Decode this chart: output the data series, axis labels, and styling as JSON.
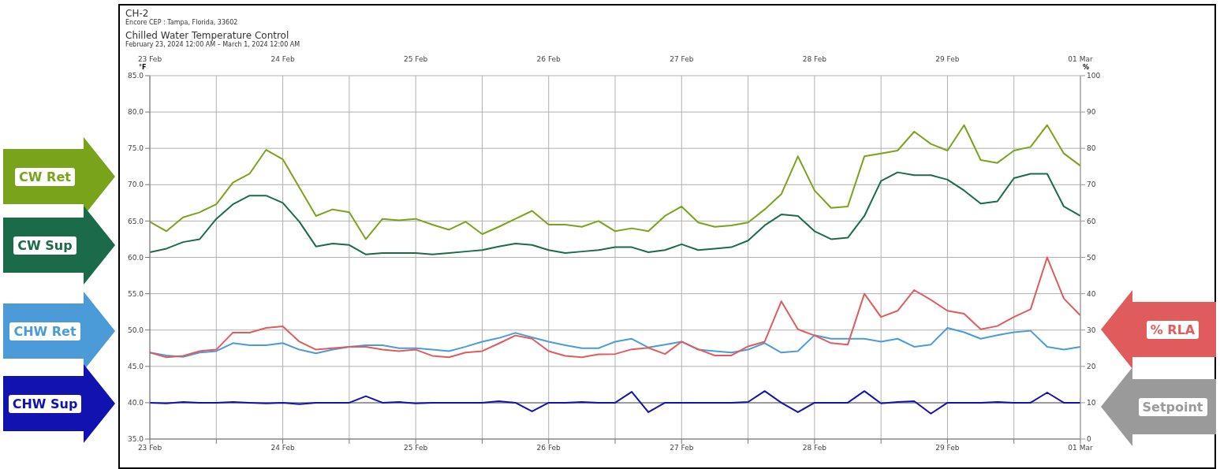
{
  "chart_data": {
    "type": "line",
    "title": "Chilled Water Temperature Control",
    "subtitle": "February 23, 2024 12:00 AM – March 1, 2024 12:00 AM",
    "annotations": [
      "CH-2",
      "Encore CEP : Tampa, Florida, 33602"
    ],
    "ylabel": "°F",
    "y2label": "%",
    "x": [
      "2024-02-23T00:00",
      "2024-02-23T03:00",
      "2024-02-23T06:00",
      "2024-02-23T09:00",
      "2024-02-23T12:00",
      "2024-02-23T15:00",
      "2024-02-23T18:00",
      "2024-02-23T21:00",
      "2024-02-24T00:00",
      "2024-02-24T03:00",
      "2024-02-24T06:00",
      "2024-02-24T09:00",
      "2024-02-24T12:00",
      "2024-02-24T15:00",
      "2024-02-24T18:00",
      "2024-02-24T21:00",
      "2024-02-25T00:00",
      "2024-02-25T03:00",
      "2024-02-25T06:00",
      "2024-02-25T09:00",
      "2024-02-25T12:00",
      "2024-02-25T15:00",
      "2024-02-25T18:00",
      "2024-02-25T21:00",
      "2024-02-26T00:00",
      "2024-02-26T03:00",
      "2024-02-26T06:00",
      "2024-02-26T09:00",
      "2024-02-26T12:00",
      "2024-02-26T15:00",
      "2024-02-26T18:00",
      "2024-02-26T21:00",
      "2024-02-27T00:00",
      "2024-02-27T03:00",
      "2024-02-27T06:00",
      "2024-02-27T09:00",
      "2024-02-27T12:00",
      "2024-02-27T15:00",
      "2024-02-27T18:00",
      "2024-02-27T21:00",
      "2024-02-28T00:00",
      "2024-02-28T03:00",
      "2024-02-28T06:00",
      "2024-02-28T09:00",
      "2024-02-28T12:00",
      "2024-02-28T15:00",
      "2024-02-28T18:00",
      "2024-02-28T21:00",
      "2024-02-29T00:00",
      "2024-02-29T03:00",
      "2024-02-29T06:00",
      "2024-02-29T09:00",
      "2024-02-29T12:00",
      "2024-02-29T15:00",
      "2024-02-29T18:00",
      "2024-02-29T21:00",
      "2024-03-01T00:00"
    ],
    "series": [
      {
        "name": "CW Ret",
        "color": "#7aa31c",
        "values": [
          64.9,
          63.6,
          65.5,
          66.2,
          67.3,
          70.3,
          71.5,
          74.8,
          73.5,
          69.6,
          65.7,
          66.6,
          66.2,
          62.5,
          65.3,
          65.1,
          65.3,
          64.5,
          63.8,
          64.9,
          63.2,
          64.2,
          65.3,
          66.4,
          64.5,
          64.5,
          64.2,
          65.0,
          63.6,
          64.0,
          63.6,
          65.7,
          67.0,
          64.8,
          64.2,
          64.4,
          64.8,
          66.6,
          68.7,
          73.9,
          69.2,
          66.8,
          67.0,
          73.9,
          74.3,
          74.7,
          77.3,
          75.6,
          74.7,
          78.2,
          73.4,
          73.0,
          74.7,
          75.2,
          78.2,
          74.3,
          72.6
        ]
      },
      {
        "name": "CW Sup",
        "color": "#1b6b4a",
        "values": [
          60.7,
          61.2,
          62.1,
          62.5,
          65.3,
          67.3,
          68.5,
          68.5,
          67.5,
          64.9,
          61.5,
          61.9,
          61.7,
          60.4,
          60.6,
          60.6,
          60.6,
          60.4,
          60.6,
          60.8,
          61.0,
          61.5,
          61.9,
          61.7,
          61.0,
          60.6,
          60.8,
          61.0,
          61.4,
          61.4,
          60.7,
          61.0,
          61.8,
          61.0,
          61.2,
          61.4,
          62.3,
          64.4,
          65.9,
          65.7,
          63.6,
          62.5,
          62.7,
          65.7,
          70.5,
          71.7,
          71.3,
          71.3,
          70.7,
          69.2,
          67.4,
          67.7,
          70.9,
          71.5,
          71.5,
          67.0,
          65.7
        ]
      },
      {
        "name": "CHW Ret",
        "color": "#4b9bd9",
        "values": [
          46.9,
          46.5,
          46.3,
          46.9,
          47.1,
          48.2,
          47.9,
          47.9,
          48.2,
          47.3,
          46.8,
          47.3,
          47.7,
          47.9,
          47.9,
          47.5,
          47.5,
          47.3,
          47.1,
          47.7,
          48.4,
          48.9,
          49.6,
          49.0,
          48.4,
          47.9,
          47.5,
          47.5,
          48.4,
          48.8,
          47.6,
          48.0,
          48.4,
          47.3,
          47.1,
          46.9,
          47.3,
          48.2,
          46.9,
          47.1,
          49.3,
          48.8,
          48.8,
          48.8,
          48.4,
          48.8,
          47.7,
          48.0,
          50.3,
          49.7,
          48.8,
          49.3,
          49.7,
          49.9,
          47.7,
          47.3,
          47.7
        ]
      },
      {
        "name": "% RLA",
        "color": "#e05c5c",
        "axis": "y2",
        "values": [
          23.8,
          22.5,
          22.9,
          24.2,
          24.6,
          29.3,
          29.3,
          30.6,
          31.0,
          26.8,
          24.6,
          25.0,
          25.4,
          25.4,
          24.6,
          24.2,
          24.6,
          22.9,
          22.5,
          23.8,
          24.2,
          26.3,
          28.5,
          27.6,
          24.2,
          22.9,
          22.5,
          23.3,
          23.4,
          24.7,
          25.1,
          23.4,
          26.8,
          24.7,
          23.0,
          23.0,
          25.5,
          26.8,
          37.9,
          30.2,
          28.5,
          26.4,
          26.0,
          40.0,
          33.6,
          35.3,
          41.0,
          38.3,
          35.3,
          34.5,
          30.2,
          31.1,
          33.6,
          35.7,
          50.0,
          38.7,
          34.0
        ]
      },
      {
        "name": "Setpoint",
        "color": "#9a9a9a",
        "x": [
          "2024-02-23T00:00",
          "2024-03-01T00:00"
        ],
        "values": [
          40.0,
          40.0
        ]
      },
      {
        "name": "CHW Sup",
        "color": "#1212b0",
        "values": [
          40.0,
          39.9,
          40.1,
          40.0,
          40.0,
          40.1,
          40.0,
          39.9,
          40.0,
          39.8,
          40.0,
          40.0,
          40.0,
          40.9,
          40.0,
          40.1,
          39.9,
          40.0,
          40.0,
          40.0,
          40.0,
          40.2,
          40.0,
          38.8,
          40.0,
          40.0,
          40.1,
          40.0,
          40.0,
          41.5,
          38.7,
          40.0,
          40.0,
          40.0,
          40.0,
          40.0,
          40.1,
          41.6,
          40.0,
          38.7,
          40.0,
          40.0,
          40.0,
          41.6,
          39.9,
          40.1,
          40.2,
          38.5,
          40.0,
          40.0,
          40.0,
          40.1,
          40.0,
          40.0,
          41.4,
          40.0,
          40.0
        ]
      }
    ],
    "xlim": [
      "2024-02-23T00:00",
      "2024-03-01T00:00"
    ],
    "xticks": [
      {
        "value": "2024-02-23T00:00",
        "label": "23 Feb"
      },
      {
        "value": "2024-02-23T12:00",
        "label": null
      },
      {
        "value": "2024-02-24T00:00",
        "label": "24 Feb"
      },
      {
        "value": "2024-02-24T12:00",
        "label": null
      },
      {
        "value": "2024-02-25T00:00",
        "label": "25 Feb"
      },
      {
        "value": "2024-02-25T12:00",
        "label": null
      },
      {
        "value": "2024-02-26T00:00",
        "label": "26 Feb"
      },
      {
        "value": "2024-02-26T12:00",
        "label": null
      },
      {
        "value": "2024-02-27T00:00",
        "label": "27 Feb"
      },
      {
        "value": "2024-02-27T12:00",
        "label": null
      },
      {
        "value": "2024-02-28T00:00",
        "label": "28 Feb"
      },
      {
        "value": "2024-02-28T12:00",
        "label": null
      },
      {
        "value": "2024-02-29T00:00",
        "label": "29 Feb"
      },
      {
        "value": "2024-02-29T12:00",
        "label": null
      },
      {
        "value": "2024-03-01T00:00",
        "label": "01 Mar"
      }
    ],
    "x2lim": [
      "2024-02-23T00:00",
      "2024-03-01T00:00"
    ],
    "x2ticks": [
      {
        "value": "2024-02-23T00:00",
        "label": "23 Feb"
      },
      {
        "value": "2024-02-24T00:00",
        "label": "24 Feb"
      },
      {
        "value": "2024-02-25T00:00",
        "label": "25 Feb"
      },
      {
        "value": "2024-02-26T00:00",
        "label": "26 Feb"
      },
      {
        "value": "2024-02-27T00:00",
        "label": "27 Feb"
      },
      {
        "value": "2024-02-28T00:00",
        "label": "28 Feb"
      },
      {
        "value": "2024-02-29T00:00",
        "label": "29 Feb"
      },
      {
        "value": "2024-03-01T00:00",
        "label": "01 Mar"
      }
    ],
    "ylim": [
      35,
      85
    ],
    "yticks": [
      {
        "value": 35,
        "label": "35.0"
      },
      {
        "value": 40,
        "label": "40.0"
      },
      {
        "value": 45,
        "label": "45.0"
      },
      {
        "value": 50,
        "label": "50.0"
      },
      {
        "value": 55,
        "label": "55.0"
      },
      {
        "value": 60,
        "label": "60.0"
      },
      {
        "value": 65,
        "label": "65.0"
      },
      {
        "value": 70,
        "label": "70.0"
      },
      {
        "value": 75,
        "label": "75.0"
      },
      {
        "value": 80,
        "label": "80.0"
      },
      {
        "value": 85,
        "label": "85.0"
      }
    ],
    "y2lim": [
      0,
      100
    ],
    "y2ticks": [
      0,
      10,
      20,
      30,
      40,
      50,
      60,
      70,
      80,
      90,
      100
    ],
    "grid": true,
    "legend": false,
    "marker": "none",
    "line_style": "solid"
  }
}
